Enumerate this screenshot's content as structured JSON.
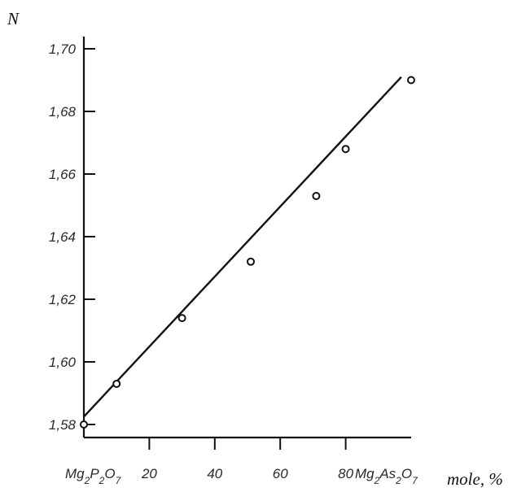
{
  "chart_data": {
    "type": "scatter",
    "ylabel": "N",
    "xlabel": "mole, %",
    "x_left_label": "Mg2P2O7",
    "x_right_label": "Mg2As2O7",
    "xlim": [
      0,
      100
    ],
    "ylim": [
      1.58,
      1.7
    ],
    "x_ticks": [
      {
        "value": 20,
        "label": "20"
      },
      {
        "value": 40,
        "label": "40"
      },
      {
        "value": 60,
        "label": "60"
      },
      {
        "value": 80,
        "label": "80"
      }
    ],
    "y_ticks": [
      {
        "value": 1.58,
        "label": "1,58"
      },
      {
        "value": 1.6,
        "label": "1,60"
      },
      {
        "value": 1.62,
        "label": "1,62"
      },
      {
        "value": 1.64,
        "label": "1,64"
      },
      {
        "value": 1.66,
        "label": "1,66"
      },
      {
        "value": 1.68,
        "label": "1,68"
      },
      {
        "value": 1.7,
        "label": "1,70"
      }
    ],
    "points": [
      {
        "x": 0,
        "y": 1.58
      },
      {
        "x": 10,
        "y": 1.593
      },
      {
        "x": 30,
        "y": 1.614
      },
      {
        "x": 51,
        "y": 1.632
      },
      {
        "x": 71,
        "y": 1.653
      },
      {
        "x": 80,
        "y": 1.668
      },
      {
        "x": 100,
        "y": 1.69
      }
    ],
    "fit_line": [
      {
        "x": 0,
        "y": 1.5825
      },
      {
        "x": 97,
        "y": 1.691
      }
    ],
    "grid": false,
    "legend": "none"
  }
}
